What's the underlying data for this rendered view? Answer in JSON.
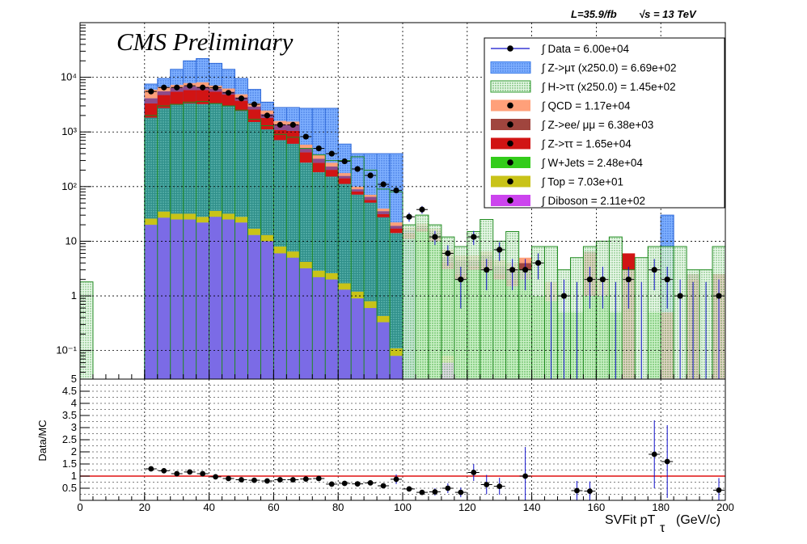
{
  "header": {
    "lumi_label": "L=35.9/fb",
    "energy_label": "√s = 13 TeV",
    "cms_label": "CMS Preliminary"
  },
  "chart_data": {
    "type": "bar",
    "subtype": "stacked-histogram-with-ratio",
    "xlabel": "SVFit pT_τ (GeV/c)",
    "xlabel_main": "SVFit pT",
    "xlabel_sub": "τ",
    "xlabel_unit": "(GeV/c)",
    "ylabel_ratio": "Data/MC",
    "xlim": [
      0,
      200
    ],
    "ylim": [
      0.03,
      100000
    ],
    "yscale": "log",
    "ratio_ylim": [
      0,
      5
    ],
    "grid": true,
    "legend_position": "top-right",
    "x_ticks": [
      "0",
      "20",
      "40",
      "60",
      "80",
      "100",
      "120",
      "140",
      "160",
      "180",
      "200"
    ],
    "y_ticks": [
      {
        "v": 0.1,
        "label": "10⁻¹"
      },
      {
        "v": 1,
        "label": "1"
      },
      {
        "v": 10,
        "label": "10"
      },
      {
        "v": 100,
        "label": "10²"
      },
      {
        "v": 1000,
        "label": "10³"
      },
      {
        "v": 10000,
        "label": "10⁴"
      }
    ],
    "ratio_ticks": [
      "0.5",
      "1",
      "1.5",
      "2",
      "2.5",
      "3",
      "3.5",
      "4",
      "4.5",
      "5"
    ],
    "legend": [
      {
        "key": "data",
        "label": "∫ Data = 6.00e+04",
        "style": "marker",
        "color": "#000000"
      },
      {
        "key": "zmutau",
        "label": "∫ Z->μτ (x250.0) = 6.69e+02",
        "style": "hatch",
        "color": "#3b7be8"
      },
      {
        "key": "htautau",
        "label": "∫ H->ττ (x250.0) = 1.45e+02",
        "style": "hatch",
        "color": "#2e9a2e"
      },
      {
        "key": "qcd",
        "label": "∫ QCD = 1.17e+04",
        "style": "fill",
        "color": "#ffa07a"
      },
      {
        "key": "zll",
        "label": "∫ Z->ee/ μμ = 6.38e+03",
        "style": "fill",
        "color": "#a0453e"
      },
      {
        "key": "ztt",
        "label": "∫ Z->ττ = 1.65e+04",
        "style": "fill",
        "color": "#d11414"
      },
      {
        "key": "wjets",
        "label": "∫ W+Jets = 2.48e+04",
        "style": "fill",
        "color": "#33cc1a"
      },
      {
        "key": "top",
        "label": "∫ Top = 7.03e+01",
        "style": "fill",
        "color": "#c9c318"
      },
      {
        "key": "diboson",
        "label": "∫ Diboson = 2.11e+02",
        "style": "fill",
        "color": "#cc44ee"
      }
    ],
    "bin_width": 4,
    "bin_edges": [
      0,
      4,
      8,
      12,
      16,
      20,
      24,
      28,
      32,
      36,
      40,
      44,
      48,
      52,
      56,
      60,
      64,
      68,
      72,
      76,
      80,
      84,
      88,
      92,
      96,
      100,
      104,
      108,
      112,
      116,
      120,
      124,
      128,
      132,
      136,
      140,
      144,
      148,
      152,
      156,
      160,
      164,
      168,
      172,
      176,
      180,
      184,
      188,
      192,
      196,
      200
    ],
    "series": [
      {
        "name": "∫ Diboson = 2.11e+02",
        "values": [
          0,
          0,
          0,
          0,
          0,
          20,
          27,
          25,
          25,
          22,
          28,
          25,
          22,
          13,
          10,
          6,
          5,
          3.2,
          2.2,
          2.0,
          1.3,
          0.9,
          0.6,
          0.33,
          0.08,
          0,
          0,
          0,
          0.06,
          0,
          0,
          0,
          0,
          0,
          0,
          0,
          0,
          0,
          0,
          0,
          0,
          0,
          0,
          0,
          0,
          0,
          0,
          0,
          0,
          0
        ]
      },
      {
        "name": "∫ Top = 7.03e+01",
        "values": [
          0,
          0,
          0,
          0,
          0,
          6,
          8,
          7,
          7,
          6,
          8,
          7,
          6,
          4,
          3,
          2,
          1.5,
          1,
          0.7,
          0.6,
          0.4,
          0.3,
          0.2,
          0.1,
          0.03,
          0,
          0,
          0,
          0.02,
          0,
          0,
          0,
          0,
          0,
          0,
          0,
          0,
          0,
          0,
          0,
          0,
          0,
          0,
          0,
          0,
          0,
          0,
          0,
          0,
          0
        ]
      },
      {
        "name": "∫ W+Jets = 2.48e+04",
        "values": [
          0,
          0,
          0,
          0,
          0,
          1800,
          2700,
          3100,
          3300,
          3200,
          3300,
          3000,
          2400,
          1500,
          1100,
          700,
          600,
          270,
          180,
          150,
          110,
          70,
          50,
          27,
          14,
          11,
          15,
          10,
          3,
          2,
          3,
          3,
          2,
          1.5,
          2,
          1,
          0.8,
          0.5,
          0.5,
          1,
          1,
          0.5,
          0,
          0,
          0.5,
          0,
          0,
          0,
          0,
          0
        ]
      },
      {
        "name": "∫ Z->ττ = 1.65e+04",
        "values": [
          0,
          0,
          0,
          0,
          0,
          1500,
          2000,
          2300,
          2500,
          2600,
          2100,
          1800,
          1300,
          1050,
          700,
          380,
          440,
          150,
          90,
          50,
          30,
          10,
          6,
          4,
          3,
          3,
          2,
          2,
          1,
          0.5,
          0.5,
          1.5,
          0.5,
          0.5,
          0,
          0,
          0,
          0,
          0,
          5,
          0,
          0,
          6,
          0,
          0,
          0.5,
          0,
          2,
          0,
          2.5
        ]
      },
      {
        "name": "∫ Z->ee/ μμ = 6.38e+03",
        "values": [
          0,
          0,
          0,
          0,
          0,
          800,
          800,
          1000,
          1000,
          850,
          700,
          600,
          550,
          350,
          300,
          250,
          300,
          80,
          50,
          30,
          15,
          8,
          8,
          4,
          2,
          2,
          2,
          3,
          1,
          2,
          1,
          1,
          1,
          1,
          2,
          0,
          0,
          0,
          0,
          0.5,
          0,
          0,
          0,
          0,
          0,
          0,
          0,
          0.5,
          0,
          0
        ]
      },
      {
        "name": "∫ QCD = 1.17e+04",
        "values": [
          0,
          0,
          0,
          0,
          0,
          1800,
          1100,
          800,
          1000,
          1400,
          900,
          800,
          600,
          400,
          350,
          250,
          200,
          80,
          60,
          40,
          20,
          10,
          6,
          4,
          3,
          2,
          2,
          2,
          2,
          1,
          1,
          1,
          1,
          1,
          1,
          0,
          1,
          0,
          0,
          0,
          1,
          0,
          0,
          0,
          0,
          0,
          0,
          0,
          0,
          0
        ]
      },
      {
        "name": "∫ Z->μτ (x250.0) = 6.69e+02",
        "values": [
          0,
          0,
          0,
          0,
          0,
          7500,
          9500,
          14000,
          20000,
          22000,
          18000,
          14000,
          9500,
          6000,
          3500,
          2800,
          2800,
          2700,
          2700,
          2700,
          600,
          400,
          400,
          400,
          400,
          0,
          0,
          0,
          0,
          0,
          0,
          0,
          0,
          0,
          0,
          0,
          0,
          0,
          0,
          0,
          0,
          0,
          0,
          0,
          0,
          30,
          0,
          0,
          0,
          0
        ]
      },
      {
        "name": "∫ H->ττ (x250.0) = 1.45e+02",
        "values": [
          1.8,
          0,
          0,
          0,
          0,
          2000,
          3000,
          3200,
          3500,
          3600,
          3300,
          3000,
          2500,
          1700,
          1300,
          900,
          800,
          500,
          380,
          300,
          300,
          350,
          200,
          90,
          80,
          20,
          30,
          20,
          12,
          8,
          15,
          25,
          10,
          15,
          3,
          8,
          8,
          3,
          5,
          8,
          10,
          12,
          3,
          5,
          8,
          8,
          8,
          3,
          3,
          8
        ]
      },
      {
        "name": "∫ Data = 6.00e+04",
        "values": [
          null,
          null,
          null,
          null,
          null,
          5500,
          6500,
          6500,
          7000,
          6500,
          6400,
          5200,
          4100,
          3200,
          2000,
          1350,
          1350,
          820,
          500,
          400,
          290,
          210,
          160,
          110,
          85,
          28,
          38,
          12,
          6,
          2,
          12,
          3,
          7,
          3,
          3,
          4,
          0,
          1,
          0,
          2,
          2,
          0,
          2,
          0,
          3,
          2,
          1,
          0,
          0,
          1
        ]
      }
    ],
    "ratio": {
      "name": "Data/MC",
      "x": [
        22,
        26,
        30,
        34,
        38,
        42,
        46,
        50,
        54,
        58,
        62,
        66,
        70,
        74,
        78,
        82,
        86,
        90,
        94,
        98,
        102,
        106,
        110,
        114,
        118,
        122,
        126,
        130,
        138,
        154,
        158,
        178,
        182,
        198
      ],
      "y": [
        1.3,
        1.22,
        1.1,
        1.17,
        1.1,
        0.97,
        0.9,
        0.85,
        0.83,
        0.8,
        0.85,
        0.85,
        0.88,
        0.9,
        0.67,
        0.7,
        0.68,
        0.72,
        0.6,
        0.87,
        0.47,
        0.33,
        0.35,
        0.5,
        0.33,
        1.15,
        0.65,
        0.58,
        1.0,
        0.4,
        0.38,
        1.9,
        1.6,
        0.42
      ],
      "err": [
        0.02,
        0.02,
        0.02,
        0.02,
        0.02,
        0.02,
        0.02,
        0.02,
        0.02,
        0.02,
        0.03,
        0.03,
        0.04,
        0.05,
        0.05,
        0.06,
        0.07,
        0.08,
        0.09,
        0.2,
        0.1,
        0.1,
        0.15,
        0.2,
        0.2,
        0.35,
        0.4,
        0.35,
        1.2,
        0.4,
        0.4,
        1.4,
        1.5,
        0.5
      ],
      "reference_line": 1
    }
  }
}
